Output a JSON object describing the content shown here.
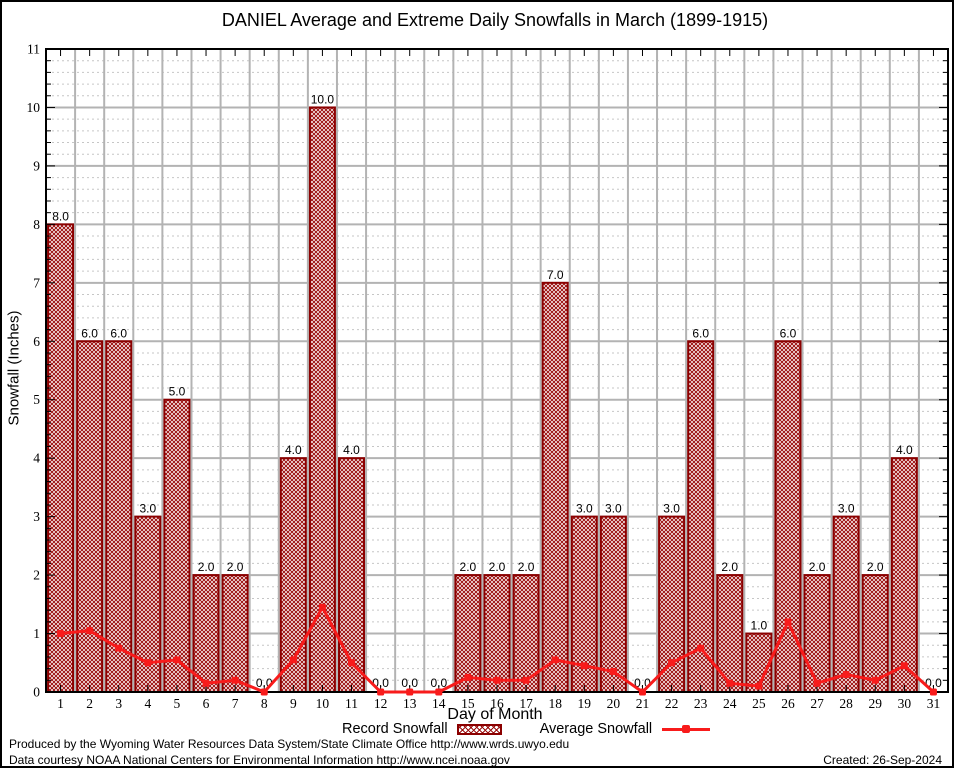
{
  "title": "DANIEL Average and Extreme Daily Snowfalls in March (1899-1915)",
  "footer": {
    "line1": "Produced by the Wyoming Water Resources Data System/State Climate Office http://www.wrds.uwyo.edu",
    "line2": "Data courtesy NOAA National Centers for Environmental Information http://www.ncei.noaa.gov",
    "created": "Created: 26-Sep-2024"
  },
  "colors": {
    "bar_border": "#8b0000",
    "bar_hatch": "#9b0d0d",
    "line": "#f81b1b",
    "grid_major": "#b3b3b3",
    "grid_minor": "#c6c6c6",
    "axis": "#000000",
    "text": "#000000"
  },
  "chart_data": {
    "type": "bar",
    "title": "DANIEL Average and Extreme Daily Snowfalls in March (1899-1915)",
    "xlabel": "Day of Month",
    "ylabel": "Snowfall (Inches)",
    "ylim": [
      0,
      11
    ],
    "yticks": [
      0,
      1,
      2,
      3,
      4,
      5,
      6,
      7,
      8,
      9,
      10,
      11
    ],
    "grid": true,
    "legend_position": "bottom",
    "categories": [
      "1",
      "2",
      "3",
      "4",
      "5",
      "6",
      "7",
      "8",
      "9",
      "10",
      "11",
      "12",
      "13",
      "14",
      "15",
      "16",
      "17",
      "18",
      "19",
      "20",
      "21",
      "22",
      "23",
      "24",
      "25",
      "26",
      "27",
      "28",
      "29",
      "30",
      "31"
    ],
    "series": [
      {
        "name": "Record Snowfall",
        "kind": "bar",
        "values": [
          8,
          6,
          6,
          3,
          5,
          2,
          2,
          0,
          4,
          10,
          4,
          0,
          0,
          0,
          2,
          2,
          2,
          7,
          3,
          3,
          0,
          3,
          6,
          2,
          1,
          6,
          2,
          3,
          2,
          4,
          0
        ],
        "labels": [
          "8.0",
          "6.0",
          "6.0",
          "3.0",
          "5.0",
          "2.0",
          "2.0",
          "0.0",
          "4.0",
          "10.0",
          "4.0",
          "0.0",
          "0.0",
          "0.0",
          "2.0",
          "2.0",
          "2.0",
          "7.0",
          "3.0",
          "3.0",
          "0.0",
          "3.0",
          "6.0",
          "2.0",
          "1.0",
          "6.0",
          "2.0",
          "3.0",
          "2.0",
          "4.0",
          "0.0"
        ]
      },
      {
        "name": "Average Snowfall",
        "kind": "line",
        "values": [
          1.0,
          1.05,
          0.75,
          0.5,
          0.55,
          0.15,
          0.2,
          0.0,
          0.55,
          1.45,
          0.5,
          0.0,
          0.0,
          0.0,
          0.25,
          0.2,
          0.2,
          0.55,
          0.45,
          0.35,
          0.0,
          0.5,
          0.75,
          0.15,
          0.1,
          1.2,
          0.15,
          0.3,
          0.2,
          0.45,
          0.0
        ]
      }
    ]
  }
}
